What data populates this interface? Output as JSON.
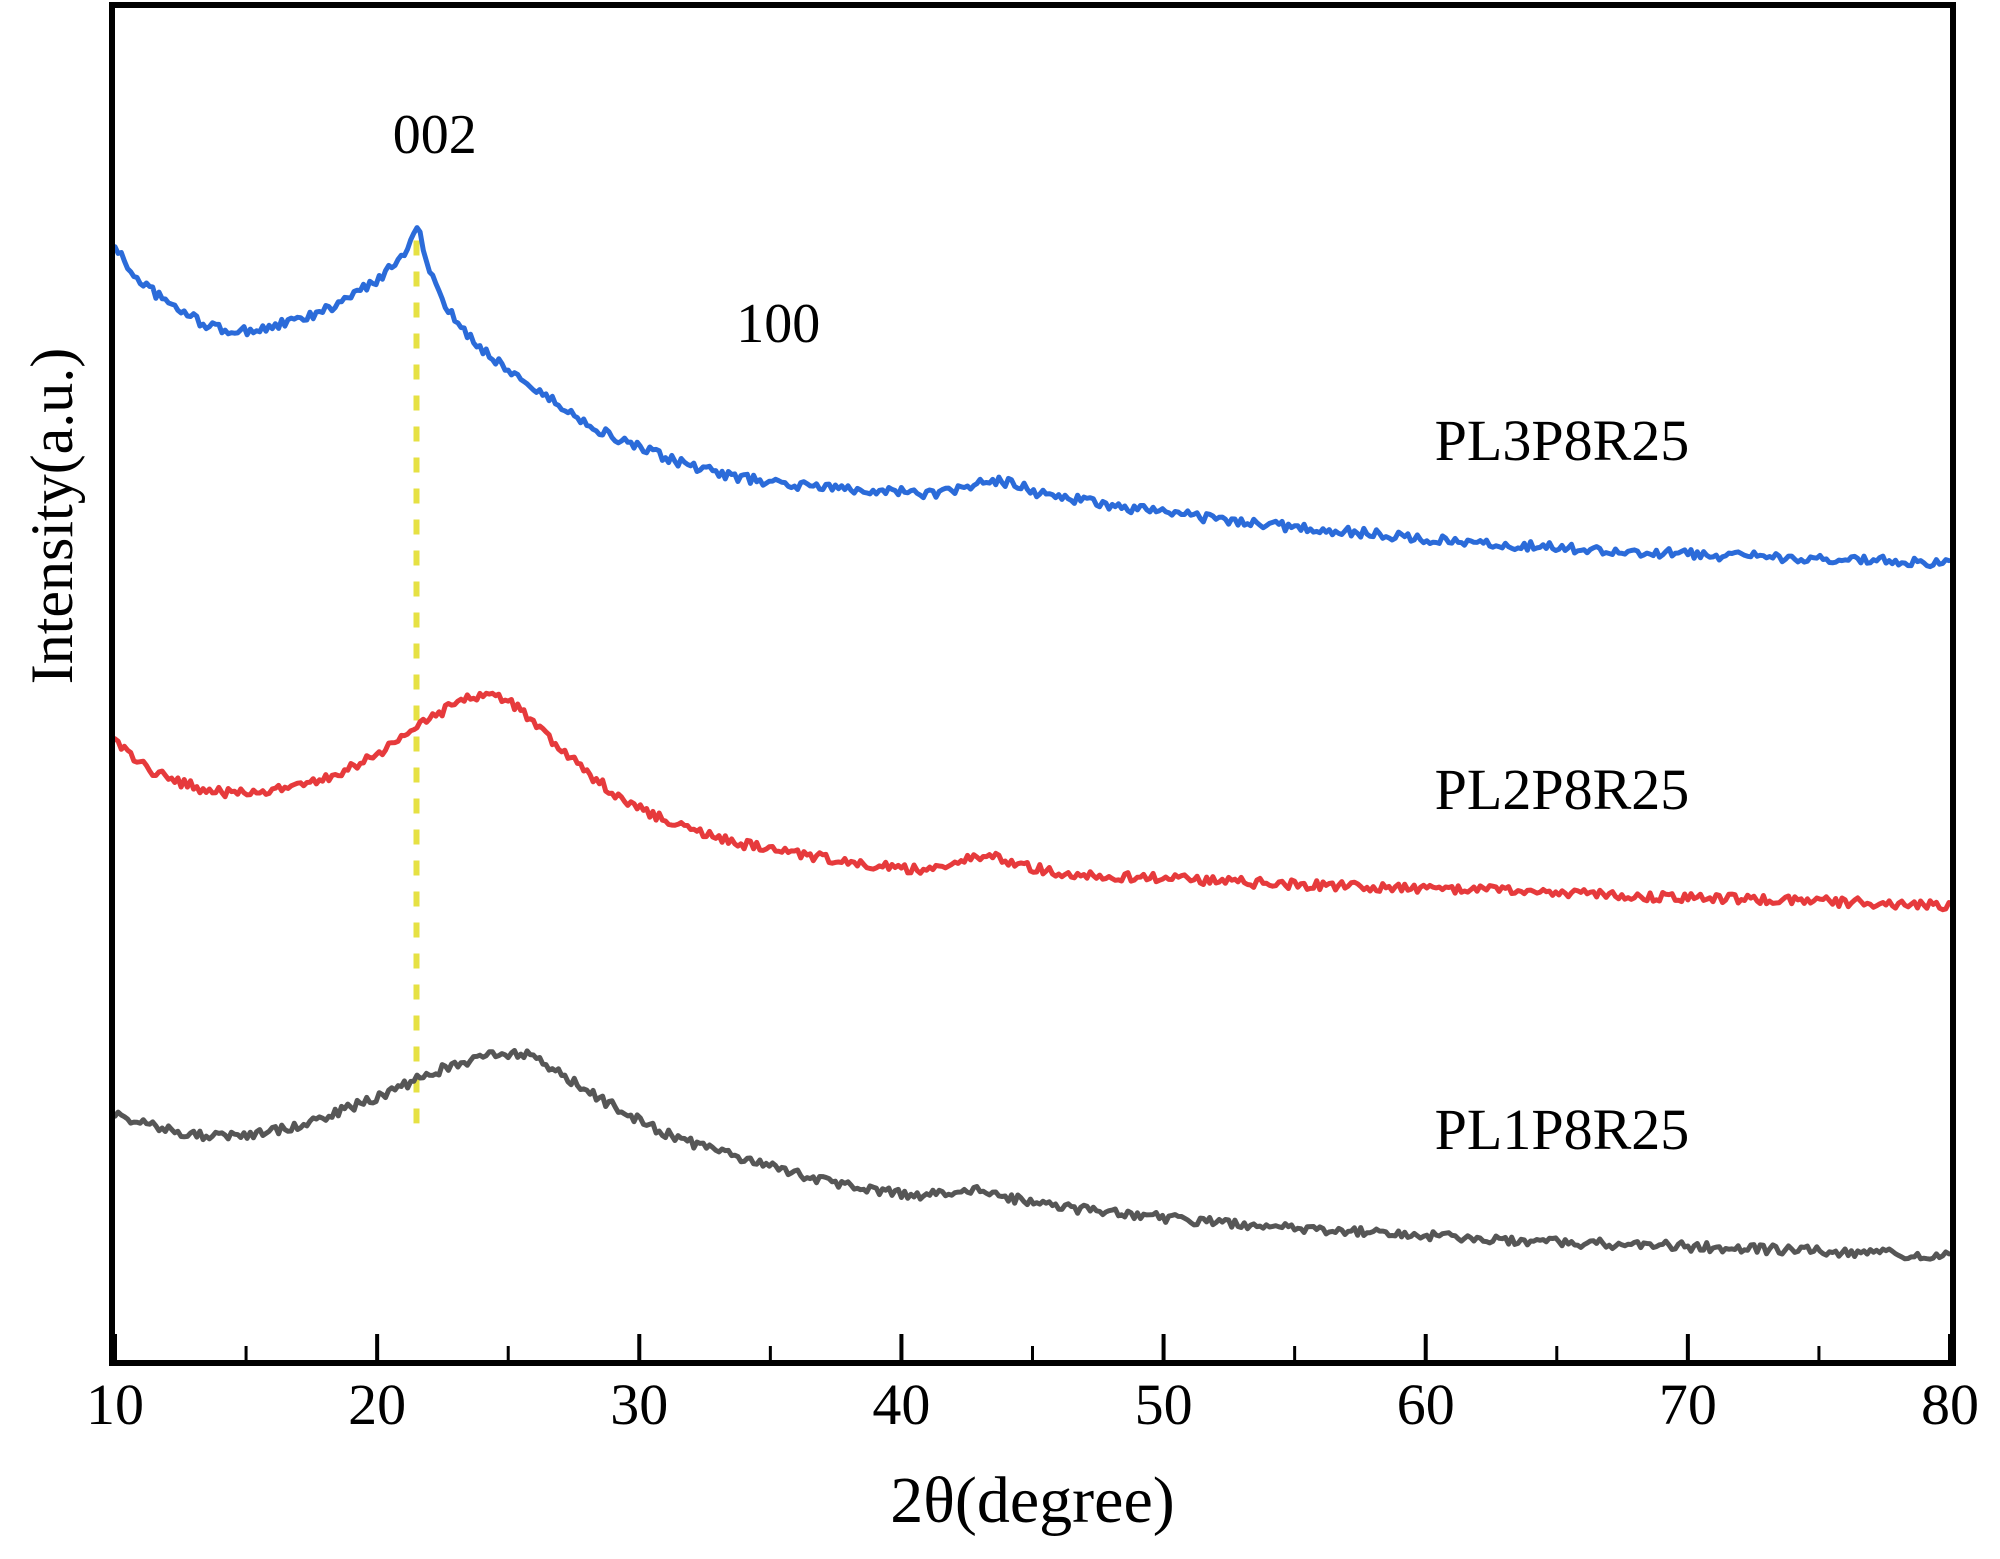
{
  "figure": {
    "background_color": "#ffffff",
    "axis_color": "#000000"
  },
  "chart_data": {
    "type": "line",
    "title": "",
    "xlabel": "2θ(degree)",
    "ylabel": "Intensity(a.u.)",
    "x_range": [
      10,
      80
    ],
    "x_ticks": [
      "10",
      "20",
      "30",
      "40",
      "50",
      "60",
      "70",
      "80"
    ],
    "x_minor_tick_step": 5,
    "y_units": "arbitrary units (normalized 0-1 of plot height, no y tick labels shown)",
    "grid": false,
    "legend_position": "inline labels at right of each curve",
    "noise_amplitude": 0.0035,
    "dashed_guide_line": {
      "x": 21.5,
      "y_top": 0.828,
      "y_bottom": 0.175,
      "color": "#e6e143",
      "style": "dashed"
    },
    "annotations": [
      {
        "text": "002",
        "x": 22.2,
        "y": 0.906
      },
      {
        "text": "100",
        "x": 35.3,
        "y": 0.766
      }
    ],
    "series": [
      {
        "name": "PL3P8R25",
        "color": "#2b6bd9",
        "label_x": 65.2,
        "label_y": 0.68,
        "points": [
          [
            10,
            0.823
          ],
          [
            10.6,
            0.805
          ],
          [
            11.3,
            0.793
          ],
          [
            12.0,
            0.782
          ],
          [
            12.8,
            0.773
          ],
          [
            13.6,
            0.765
          ],
          [
            14.5,
            0.761
          ],
          [
            15.4,
            0.762
          ],
          [
            16.3,
            0.766
          ],
          [
            17.3,
            0.771
          ],
          [
            18.3,
            0.779
          ],
          [
            19.2,
            0.789
          ],
          [
            20.0,
            0.799
          ],
          [
            20.7,
            0.812
          ],
          [
            21.2,
            0.824
          ],
          [
            21.5,
            0.838
          ],
          [
            21.8,
            0.818
          ],
          [
            22.3,
            0.79
          ],
          [
            22.9,
            0.771
          ],
          [
            23.6,
            0.755
          ],
          [
            24.5,
            0.74
          ],
          [
            25.6,
            0.724
          ],
          [
            26.8,
            0.708
          ],
          [
            28.0,
            0.693
          ],
          [
            29.2,
            0.681
          ],
          [
            30.5,
            0.671
          ],
          [
            32.0,
            0.661
          ],
          [
            33.8,
            0.653
          ],
          [
            35.6,
            0.648
          ],
          [
            37.5,
            0.645
          ],
          [
            39.5,
            0.643
          ],
          [
            41.2,
            0.641
          ],
          [
            42.3,
            0.644
          ],
          [
            43.3,
            0.65
          ],
          [
            44.3,
            0.648
          ],
          [
            45.3,
            0.641
          ],
          [
            46.5,
            0.637
          ],
          [
            48.0,
            0.632
          ],
          [
            50.0,
            0.627
          ],
          [
            52.5,
            0.621
          ],
          [
            55.0,
            0.616
          ],
          [
            58.0,
            0.611
          ],
          [
            61.0,
            0.606
          ],
          [
            64.0,
            0.602
          ],
          [
            67.0,
            0.599
          ],
          [
            70.0,
            0.596
          ],
          [
            73.0,
            0.594
          ],
          [
            76.0,
            0.592
          ],
          [
            80,
            0.59
          ]
        ]
      },
      {
        "name": "PL2P8R25",
        "color": "#e63a3c",
        "label_x": 65.2,
        "label_y": 0.422,
        "points": [
          [
            10,
            0.456
          ],
          [
            10.8,
            0.443
          ],
          [
            11.7,
            0.433
          ],
          [
            12.7,
            0.426
          ],
          [
            13.7,
            0.421
          ],
          [
            14.7,
            0.419
          ],
          [
            15.7,
            0.42
          ],
          [
            16.8,
            0.424
          ],
          [
            17.9,
            0.43
          ],
          [
            19.0,
            0.438
          ],
          [
            20.0,
            0.448
          ],
          [
            20.9,
            0.46
          ],
          [
            21.8,
            0.472
          ],
          [
            22.7,
            0.482
          ],
          [
            23.5,
            0.489
          ],
          [
            24.2,
            0.492
          ],
          [
            24.9,
            0.489
          ],
          [
            25.6,
            0.478
          ],
          [
            26.4,
            0.462
          ],
          [
            27.3,
            0.446
          ],
          [
            28.3,
            0.43
          ],
          [
            29.4,
            0.415
          ],
          [
            30.6,
            0.403
          ],
          [
            32.0,
            0.392
          ],
          [
            33.6,
            0.383
          ],
          [
            35.3,
            0.377
          ],
          [
            37.2,
            0.371
          ],
          [
            39.2,
            0.366
          ],
          [
            40.9,
            0.363
          ],
          [
            42.2,
            0.369
          ],
          [
            43.3,
            0.373
          ],
          [
            44.3,
            0.368
          ],
          [
            45.5,
            0.362
          ],
          [
            47.0,
            0.359
          ],
          [
            49.0,
            0.357
          ],
          [
            51.5,
            0.355
          ],
          [
            54.5,
            0.352
          ],
          [
            58.0,
            0.35
          ],
          [
            61.5,
            0.348
          ],
          [
            65.0,
            0.346
          ],
          [
            68.5,
            0.343
          ],
          [
            72.0,
            0.341
          ],
          [
            75.5,
            0.339
          ],
          [
            80,
            0.336
          ]
        ]
      },
      {
        "name": "PL1P8R25",
        "color": "#565656",
        "label_x": 65.2,
        "label_y": 0.17,
        "points": [
          [
            10,
            0.182
          ],
          [
            10.9,
            0.176
          ],
          [
            11.8,
            0.171
          ],
          [
            12.8,
            0.167
          ],
          [
            13.8,
            0.165
          ],
          [
            14.8,
            0.166
          ],
          [
            15.9,
            0.169
          ],
          [
            17.0,
            0.174
          ],
          [
            18.2,
            0.181
          ],
          [
            19.4,
            0.19
          ],
          [
            20.5,
            0.199
          ],
          [
            21.6,
            0.208
          ],
          [
            22.6,
            0.216
          ],
          [
            23.6,
            0.222
          ],
          [
            24.6,
            0.226
          ],
          [
            25.4,
            0.227
          ],
          [
            26.1,
            0.222
          ],
          [
            26.9,
            0.213
          ],
          [
            27.8,
            0.202
          ],
          [
            28.8,
            0.19
          ],
          [
            29.9,
            0.178
          ],
          [
            31.2,
            0.166
          ],
          [
            32.7,
            0.156
          ],
          [
            34.3,
            0.147
          ],
          [
            36.0,
            0.138
          ],
          [
            37.8,
            0.13
          ],
          [
            39.5,
            0.124
          ],
          [
            41.0,
            0.122
          ],
          [
            42.2,
            0.126
          ],
          [
            43.2,
            0.124
          ],
          [
            44.3,
            0.119
          ],
          [
            45.8,
            0.114
          ],
          [
            47.5,
            0.11
          ],
          [
            49.5,
            0.106
          ],
          [
            52.0,
            0.102
          ],
          [
            55.0,
            0.098
          ],
          [
            58.0,
            0.094
          ],
          [
            61.0,
            0.091
          ],
          [
            64.0,
            0.088
          ],
          [
            67.0,
            0.086
          ],
          [
            70.0,
            0.084
          ],
          [
            73.0,
            0.082
          ],
          [
            76.0,
            0.08
          ],
          [
            80,
            0.077
          ]
        ]
      }
    ]
  }
}
